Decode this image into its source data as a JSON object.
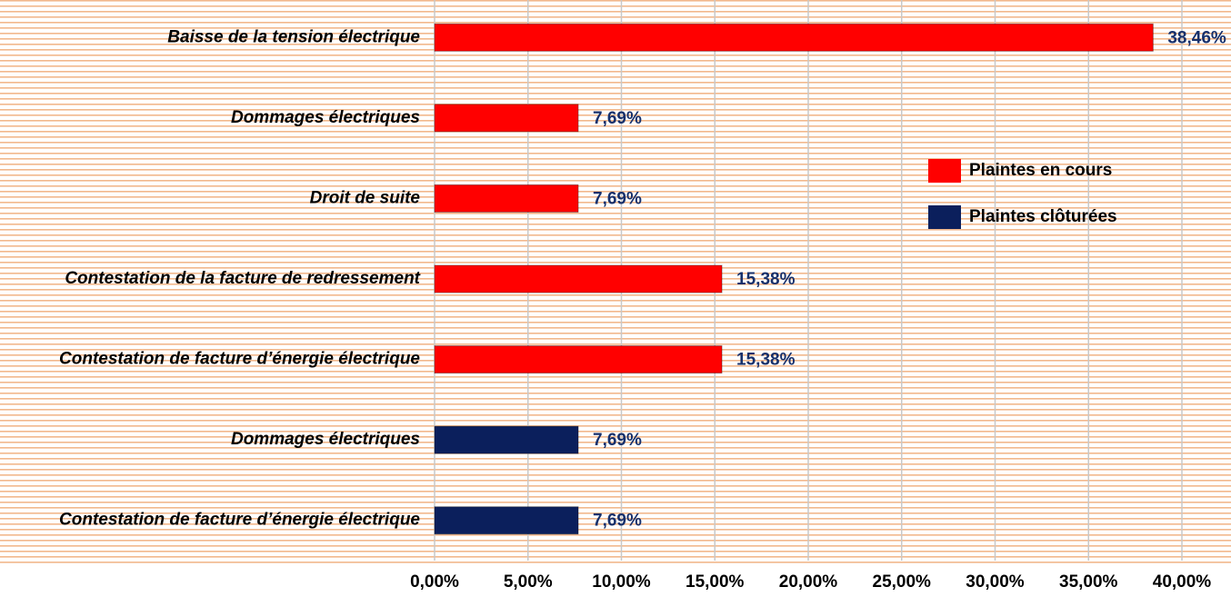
{
  "chart_data": {
    "type": "bar",
    "orientation": "horizontal",
    "categories": [
      "Baisse de la tension électrique",
      "Dommages électriques",
      "Droit de suite",
      "Contestation de la facture de redressement",
      "Contestation de facture d’énergie électrique",
      "Dommages électriques",
      "Contestation de facture d’énergie électrique"
    ],
    "series": [
      {
        "name": "Plaintes en cours",
        "color": "#ff0000",
        "values": [
          38.46,
          7.69,
          7.69,
          15.38,
          15.38,
          null,
          null
        ],
        "value_labels": [
          "38,46%",
          "7,69%",
          "7,69%",
          "15,38%",
          "15,38%",
          null,
          null
        ]
      },
      {
        "name": "Plaintes clôturées",
        "color": "#0b1f5c",
        "values": [
          null,
          null,
          null,
          null,
          null,
          7.69,
          7.69
        ],
        "value_labels": [
          null,
          null,
          null,
          null,
          null,
          "7,69%",
          "7,69%"
        ]
      }
    ],
    "xlim": [
      0,
      40
    ],
    "xticks": [
      {
        "value": 0,
        "label": "0,00%"
      },
      {
        "value": 5,
        "label": "5,00%"
      },
      {
        "value": 10,
        "label": "10,00%"
      },
      {
        "value": 15,
        "label": "15,00%"
      },
      {
        "value": 20,
        "label": "20,00%"
      },
      {
        "value": 25,
        "label": "25,00%"
      },
      {
        "value": 30,
        "label": "30,00%"
      },
      {
        "value": 35,
        "label": "35,00%"
      },
      {
        "value": 40,
        "label": "40,00%"
      }
    ],
    "grid": true,
    "legend": "right"
  }
}
